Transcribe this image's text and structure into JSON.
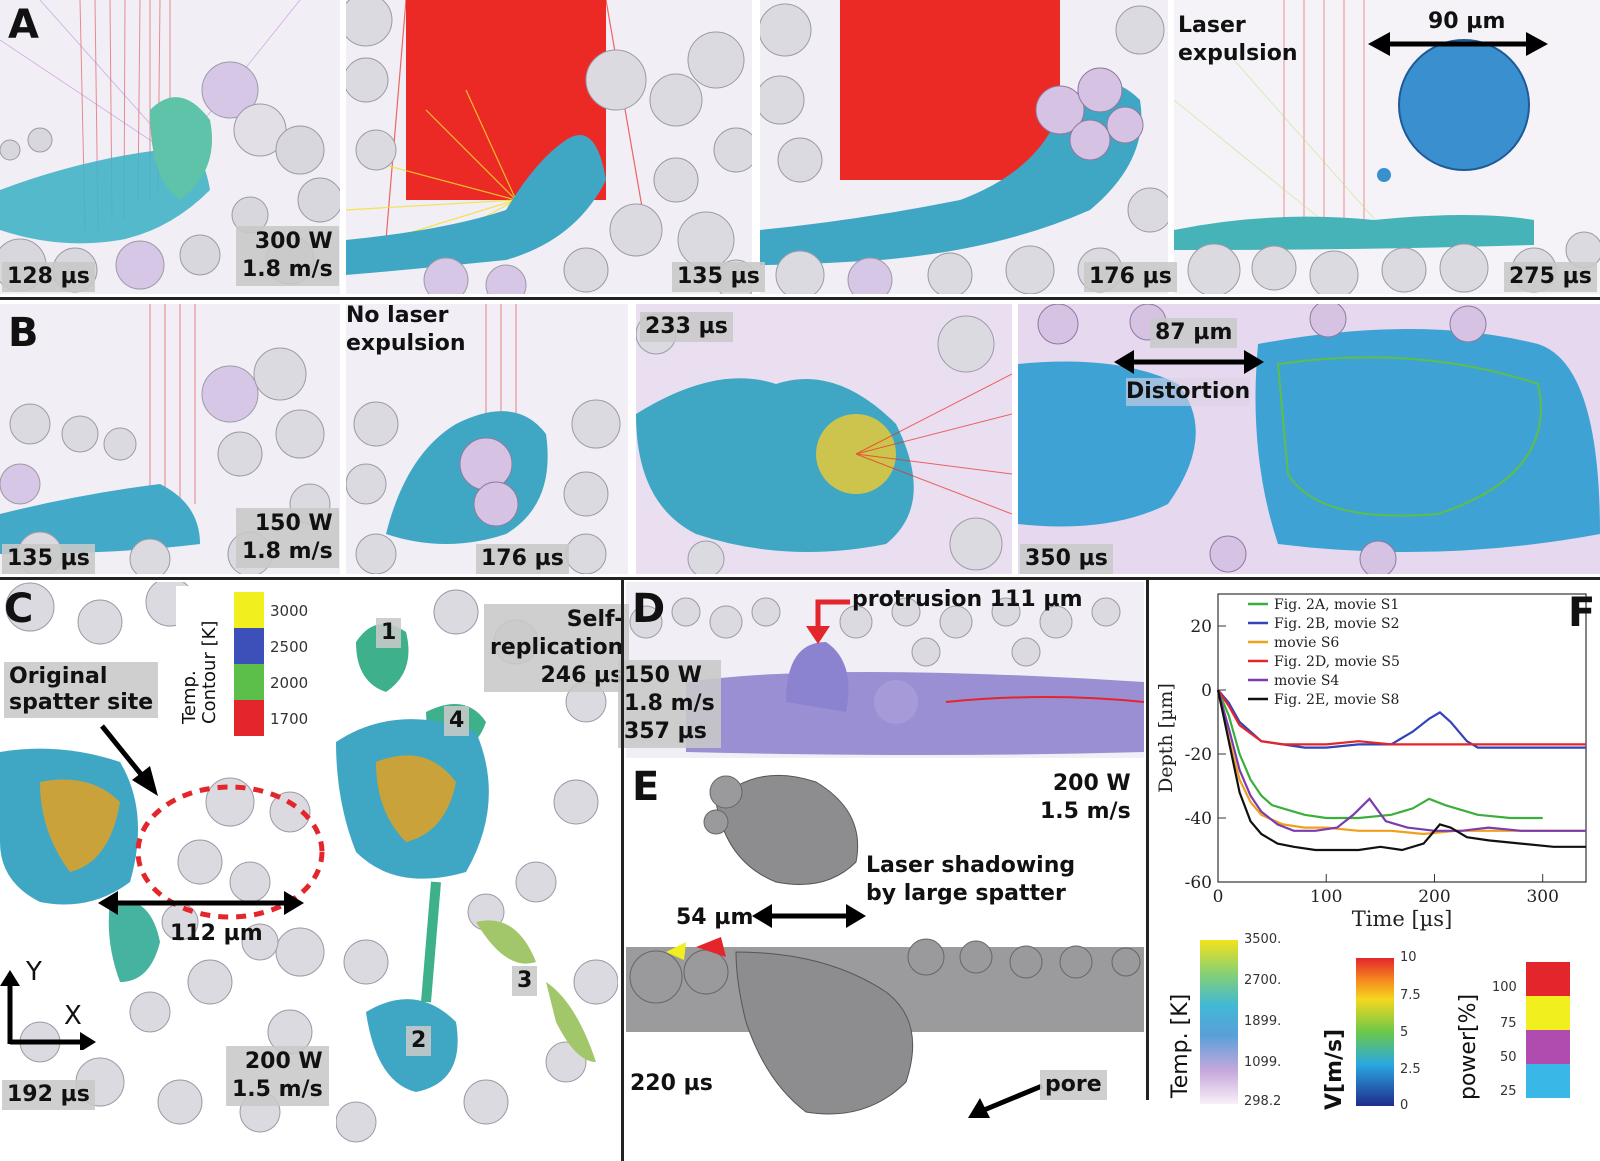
{
  "panels": {
    "A": {
      "label": "A",
      "frames": [
        {
          "time": "128 µs",
          "power": "300 W",
          "speed": "1.8 m/s"
        },
        {
          "time": "135 µs"
        },
        {
          "time": "176 µs"
        },
        {
          "time": "275 µs",
          "note_line1": "Laser",
          "note_line2": "expulsion",
          "scale": "90 µm"
        }
      ]
    },
    "B": {
      "label": "B",
      "frames": [
        {
          "time": "135 µs",
          "power": "150 W",
          "speed": "1.8 m/s"
        },
        {
          "time": "176 µs",
          "note_line1": "No laser",
          "note_line2": "expulsion"
        },
        {
          "time": "233 µs"
        },
        {
          "time": "350 µs",
          "scale": "87 µm",
          "note": "Distortion"
        }
      ]
    },
    "C": {
      "label": "C",
      "legend_title_line1": "Temp.",
      "legend_title_line2": "Contour [K]",
      "legend": [
        {
          "value": "3000",
          "color": "#f2ef1e"
        },
        {
          "value": "2500",
          "color": "#3d4fb8"
        },
        {
          "value": "2000",
          "color": "#5cbf4a"
        },
        {
          "value": "1700",
          "color": "#e3262b"
        }
      ],
      "site_line1": "Original",
      "site_line2": "spatter site",
      "scale": "112 µm",
      "axis_y": "Y",
      "axis_x": "X",
      "time": "192 µs",
      "power": "200 W",
      "speed": "1.5 m/s",
      "replication_line1": "Self-",
      "replication_line2": "replication",
      "replication_time": "246 µs",
      "ids": [
        "1",
        "2",
        "3",
        "4"
      ]
    },
    "D": {
      "label": "D",
      "protrusion": "protrusion 111 µm",
      "power": "150 W",
      "speed": "1.8 m/s",
      "time": "357 µs"
    },
    "E": {
      "label": "E",
      "power": "200 W",
      "speed": "1.5 m/s",
      "shadow_line1": "Laser shadowing",
      "shadow_line2": "by large spatter",
      "scale": "54 µm",
      "time": "220 µs",
      "pore": "pore"
    },
    "F": {
      "label": "F",
      "legend_entries": [
        "Fig. 2A, movie S1",
        "Fig. 2B, movie S2",
        "movie S6",
        "Fig. 2D, movie S5",
        "movie S4",
        "Fig. 2E, movie S8"
      ]
    }
  },
  "colorbars": [
    {
      "title": "Temp. [K]",
      "ticks": [
        "3500.",
        "2700.",
        "1899.",
        "1099.",
        "298.2"
      ],
      "colors": [
        "#f3e21c",
        "#42b8d6",
        "#58a0d8",
        "#c8a8dc",
        "#f7f0f8"
      ]
    },
    {
      "title": "V[m/s]",
      "ticks": [
        "10",
        "7.5",
        "5",
        "2.5",
        "0"
      ],
      "colors": [
        "#e3262b",
        "#f5d71e",
        "#6cc84a",
        "#2aa8e0",
        "#1f2b8c"
      ]
    },
    {
      "title": "power[%]",
      "ticks": [
        "100",
        "75",
        "50",
        "25"
      ],
      "colors": [
        "#e3262b",
        "#f2ef1e",
        "#b04cb0",
        "#39b7e6"
      ]
    }
  ],
  "chart_data": {
    "type": "line",
    "xlabel": "Time [µs]",
    "ylabel": "Depth [µm]",
    "xlim": [
      0,
      340
    ],
    "ylim": [
      -60,
      30
    ],
    "xticks": [
      0,
      100,
      200,
      300
    ],
    "yticks": [
      20,
      0,
      -20,
      -40,
      -60
    ],
    "legend_position": "top-left",
    "series": [
      {
        "name": "Fig. 2A, movie S1",
        "color": "#3cae3c",
        "x": [
          0,
          10,
          20,
          30,
          40,
          50,
          60,
          80,
          100,
          130,
          160,
          180,
          195,
          210,
          240,
          270,
          300
        ],
        "y": [
          0,
          -8,
          -20,
          -28,
          -33,
          -36,
          -37,
          -39,
          -40,
          -40,
          -39,
          -37,
          -34,
          -36,
          -39,
          -40,
          -40
        ]
      },
      {
        "name": "Fig. 2B, movie S2",
        "color": "#3343b8",
        "x": [
          0,
          10,
          20,
          40,
          60,
          80,
          100,
          130,
          160,
          180,
          195,
          205,
          215,
          230,
          240,
          270,
          300,
          340
        ],
        "y": [
          0,
          -4,
          -10,
          -16,
          -17,
          -18,
          -18,
          -17,
          -17,
          -13,
          -9,
          -7,
          -10,
          -16,
          -18,
          -18,
          -18,
          -18
        ]
      },
      {
        "name": "movie S6",
        "color": "#f0a01c",
        "x": [
          0,
          10,
          20,
          30,
          40,
          60,
          80,
          100,
          130,
          160,
          190,
          220,
          250,
          280,
          310,
          340
        ],
        "y": [
          0,
          -15,
          -28,
          -35,
          -39,
          -42,
          -43,
          -43,
          -44,
          -44,
          -45,
          -44,
          -44,
          -44,
          -44,
          -44
        ]
      },
      {
        "name": "Fig. 2D, movie S5",
        "color": "#e3262b",
        "x": [
          0,
          10,
          20,
          40,
          60,
          80,
          100,
          130,
          160,
          190,
          220,
          250,
          280,
          310,
          340
        ],
        "y": [
          0,
          -5,
          -11,
          -16,
          -17,
          -17,
          -17,
          -16,
          -17,
          -17,
          -17,
          -17,
          -17,
          -17,
          -17
        ]
      },
      {
        "name": "movie S4",
        "color": "#7b3cb0",
        "x": [
          0,
          10,
          20,
          30,
          40,
          55,
          70,
          90,
          110,
          125,
          140,
          155,
          175,
          200,
          225,
          250,
          280,
          310,
          340
        ],
        "y": [
          0,
          -12,
          -25,
          -33,
          -38,
          -42,
          -44,
          -44,
          -43,
          -39,
          -34,
          -41,
          -43,
          -44,
          -44,
          -43,
          -44,
          -44,
          -44
        ]
      },
      {
        "name": "Fig. 2E, movie S8",
        "color": "#111111",
        "x": [
          0,
          10,
          20,
          30,
          40,
          55,
          70,
          90,
          110,
          130,
          150,
          170,
          190,
          205,
          215,
          230,
          250,
          280,
          310,
          340
        ],
        "y": [
          0,
          -16,
          -32,
          -41,
          -45,
          -48,
          -49,
          -50,
          -50,
          -50,
          -49,
          -50,
          -48,
          -42,
          -43,
          -46,
          -47,
          -48,
          -49,
          -49
        ]
      }
    ]
  }
}
